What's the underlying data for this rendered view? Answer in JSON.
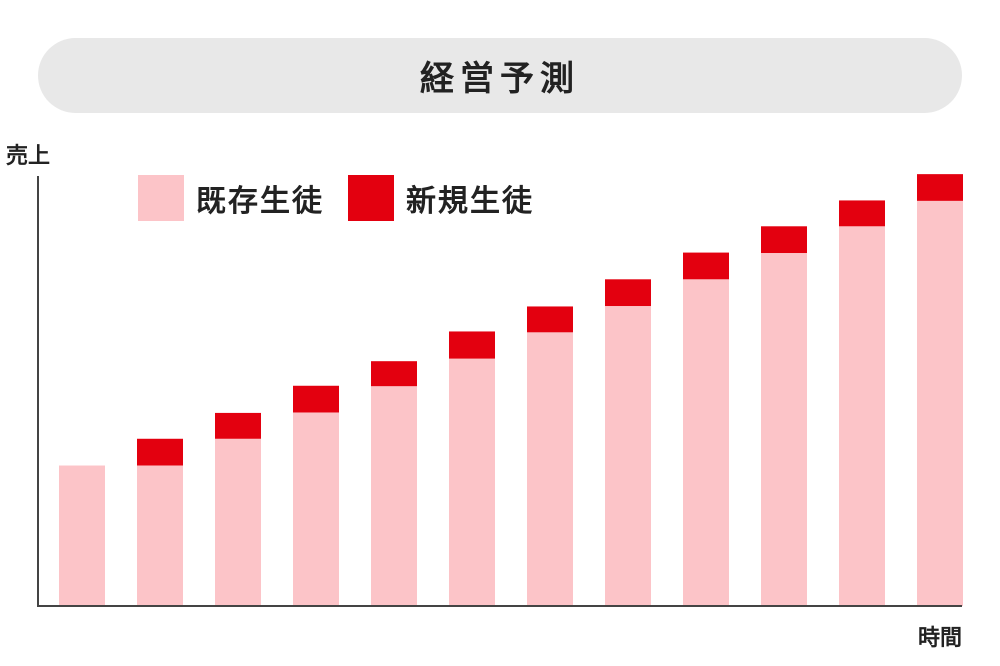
{
  "title": "経営予測",
  "colors": {
    "existing": "#fcc4c8",
    "new": "#e3000f",
    "axis": "#444444",
    "pill": "#e8e8e8"
  },
  "chart_data": {
    "type": "bar",
    "stacked": true,
    "title": "経営予測",
    "xlabel": "時間",
    "ylabel": "売上",
    "legend": "top-left",
    "grid": false,
    "ylim": [
      0,
      100
    ],
    "categories": [
      "",
      "",
      "",
      "",
      "",
      "",
      "",
      "",
      "",
      "",
      "",
      ""
    ],
    "series": [
      {
        "name": "既存生徒",
        "values": [
          32.6,
          32.6,
          38.8,
          44.9,
          51.0,
          57.4,
          63.5,
          69.6,
          75.8,
          81.9,
          88.1,
          94.0
        ]
      },
      {
        "name": "新規生徒",
        "values": [
          0,
          6.2,
          6.0,
          6.2,
          5.8,
          6.3,
          6.0,
          6.2,
          6.2,
          6.2,
          6.0,
          6.2
        ]
      }
    ]
  }
}
